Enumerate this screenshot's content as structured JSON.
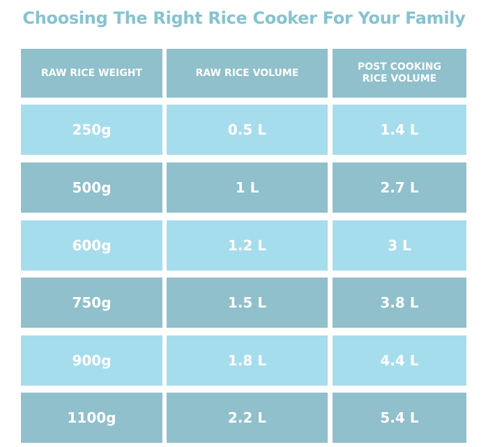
{
  "title": "Choosing The Right Rice Cooker For Your Family",
  "table": {
    "header": [
      "RAW RICE WEIGHT",
      "RAW RICE VOLUME",
      "POST COOKING RICE VOLUME"
    ],
    "rows": [
      [
        "250g",
        "0.5 L",
        "1.4 L"
      ],
      [
        "500g",
        "1 L",
        "2.7 L"
      ],
      [
        "600g",
        "1.2 L",
        "3 L"
      ],
      [
        "750g",
        "1.5 L",
        "3.8 L"
      ],
      [
        "900g",
        "1.8 L",
        "4.4 L"
      ],
      [
        "1100g",
        "2.2 L",
        "5.4 L"
      ]
    ]
  }
}
